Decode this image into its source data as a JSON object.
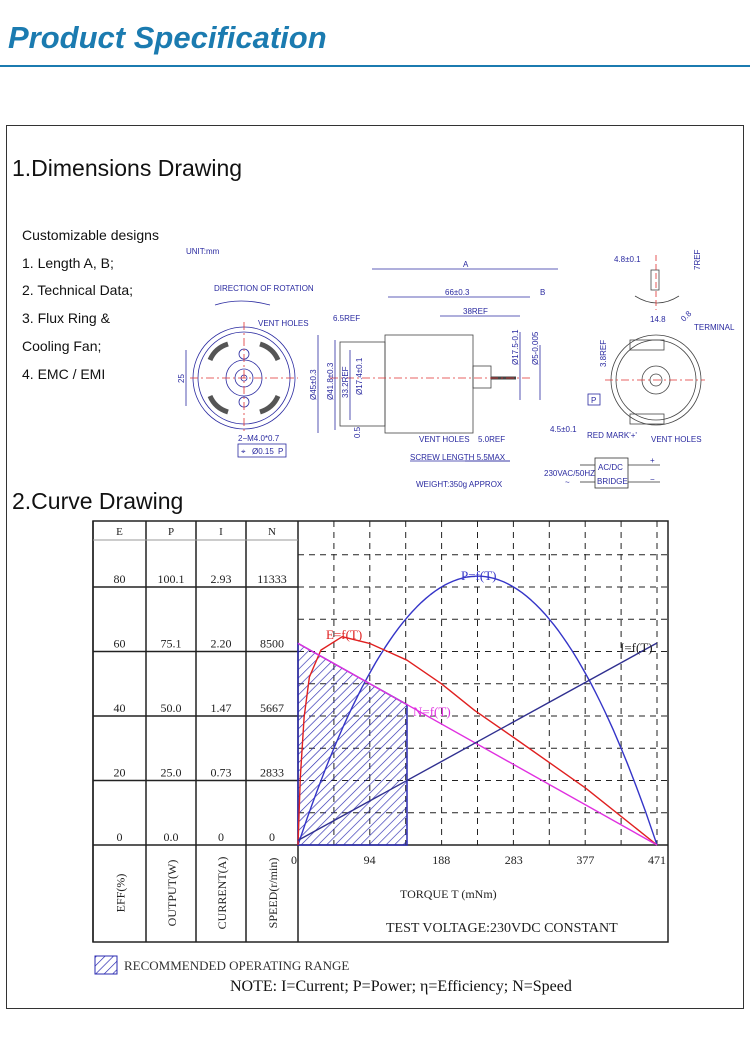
{
  "header": {
    "title": "Product Specification"
  },
  "section1": {
    "title": "1.Dimensions Drawing",
    "features": [
      "Customizable designs",
      "1. Length A, B;",
      "2. Technical Data;",
      "3. Flux Ring &",
      "Cooling Fan;",
      "4. EMC / EMI"
    ],
    "drawing": {
      "unit": "UNIT:mm",
      "rotation": "DIRECTION OF ROTATION",
      "vent_holes": "VENT HOLES",
      "hole_spec": "2−M4.0*0.7",
      "tolerance_frame": [
        "⌖",
        "Ø0.15",
        "P"
      ],
      "dim_25": "25",
      "dim_a": "A",
      "dim_66": "66±0.3",
      "dim_b": "B",
      "dim_38": "38REF",
      "dim_65": "6.5REF",
      "dim_45": "Ø45±0.3",
      "dim_418": "Ø41.8±0.3",
      "dim_332": "33.2REF",
      "dim_174": "Ø17.4±0.1",
      "dim_175": "Ø17.5-0.1",
      "dim_5": "Ø5-0.005",
      "dim_05": "0.5",
      "datum_p": "P",
      "dim_45b": "4.5±0.1",
      "dim_50": "5.0REF",
      "screw": "SCREW LENGTH 5.5MAX",
      "weight": "WEIGHT:350g APPROX",
      "dim_48": "4.8±0.1",
      "dim_7": "7REF",
      "dim_148": "14.8",
      "dim_08": "0.8",
      "terminal": "TERMINAL",
      "dim_38b": "3.8REF",
      "red_mark": "RED MARK'+'",
      "supply": "230VAC/50HZ",
      "bridge_top": "AC/DC",
      "bridge_bottom": "BRIDGE",
      "plus": "+",
      "minus": "−",
      "tilde": "~"
    }
  },
  "section2": {
    "title": "2.Curve Drawing"
  },
  "chart_data": {
    "type": "line",
    "table_headers": [
      "E",
      "P",
      "I",
      "N"
    ],
    "table_rows": [
      [
        "80",
        "100.1",
        "2.93",
        "11333"
      ],
      [
        "60",
        "75.1",
        "2.20",
        "8500"
      ],
      [
        "40",
        "50.0",
        "1.47",
        "5667"
      ],
      [
        "20",
        "25.0",
        "0.73",
        "2833"
      ],
      [
        "0",
        "0.0",
        "0",
        "0"
      ]
    ],
    "axis_labels": [
      "EFF(%)",
      "OUTPUT(W)",
      "CURRENT(A)",
      "SPEED(r/min)"
    ],
    "x_ticks": [
      "0",
      "94",
      "188",
      "283",
      "377",
      "471"
    ],
    "xlabel": "TORQUE  T  (mNm)",
    "subtitle": "TEST VOLTAGE:230VDC CONSTANT",
    "xlim": [
      0,
      471
    ],
    "grid": true,
    "series": [
      {
        "name": "P=f(T)",
        "unit": "W",
        "ymax": 125.1,
        "color": "#3535c8",
        "points": [
          [
            0,
            0
          ],
          [
            47,
            36
          ],
          [
            94,
            64
          ],
          [
            141,
            84
          ],
          [
            188,
            96
          ],
          [
            235,
            100.1
          ],
          [
            283,
            96
          ],
          [
            330,
            84
          ],
          [
            377,
            64
          ],
          [
            424,
            36
          ],
          [
            471,
            0
          ]
        ]
      },
      {
        "name": "E=f(T)",
        "unit": "%",
        "ymax": 100,
        "color": "#e02020",
        "points": [
          [
            0,
            0
          ],
          [
            3,
            20
          ],
          [
            8,
            38
          ],
          [
            15,
            50
          ],
          [
            30,
            58
          ],
          [
            58,
            62
          ],
          [
            94,
            60
          ],
          [
            143,
            55
          ],
          [
            188,
            48
          ],
          [
            232,
            40
          ],
          [
            283,
            32
          ],
          [
            377,
            17
          ],
          [
            471,
            0
          ]
        ]
      },
      {
        "name": "N=f(T)",
        "unit": "r/min",
        "ymax": 14166,
        "color": "#e030e0",
        "points": [
          [
            0,
            8500
          ],
          [
            471,
            0
          ]
        ]
      },
      {
        "name": "I=f(T)",
        "unit": "A",
        "ymax": 3.66,
        "color": "#303090",
        "points": [
          [
            0,
            0.05
          ],
          [
            471,
            2.2
          ]
        ]
      }
    ],
    "recommended_range": {
      "label": "RECOMMENDED OPERATING RANGE",
      "torque": [
        0,
        143
      ],
      "color": "#2a2ab0"
    }
  },
  "note": "NOTE: I=Current;  P=Power;  η=Efficiency;  N=Speed"
}
